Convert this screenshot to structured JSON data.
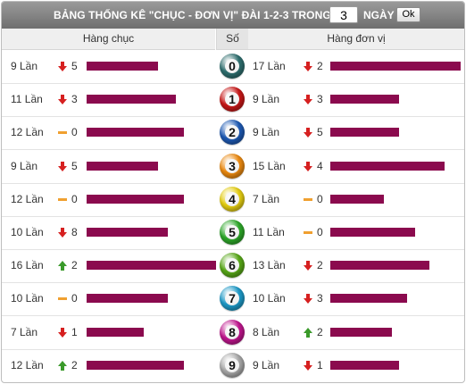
{
  "header": {
    "title": "BẢNG THỐNG KÊ \"CHỤC - ĐƠN VỊ\" ĐÀI 1-2-3 TRONG",
    "days_value": "3",
    "days_label": "NGÀY",
    "ok_label": "Ok"
  },
  "columns": {
    "tens": "Hàng chục",
    "number": "Số",
    "units": "Hàng đơn vị"
  },
  "colors": {
    "bar": "#8b0a4e",
    "trend_down": "#d62020",
    "trend_up": "#3a9a2a",
    "trend_flat": "#f0a030"
  },
  "rows": [
    {
      "digit": "0",
      "ball_color": "#2f6f6f",
      "tens": {
        "count": "9 Lần",
        "trend": "down",
        "delta": "5",
        "bar_fraction": 0.55
      },
      "units": {
        "count": "17 Lần",
        "trend": "down",
        "delta": "2",
        "bar_fraction": 1.0
      }
    },
    {
      "digit": "1",
      "ball_color": "#c81818",
      "tens": {
        "count": "11 Lần",
        "trend": "down",
        "delta": "3",
        "bar_fraction": 0.69
      },
      "units": {
        "count": "9 Lần",
        "trend": "down",
        "delta": "3",
        "bar_fraction": 0.53
      }
    },
    {
      "digit": "2",
      "ball_color": "#1e5ab4",
      "tens": {
        "count": "12 Lần",
        "trend": "flat",
        "delta": "0",
        "bar_fraction": 0.75
      },
      "units": {
        "count": "9 Lần",
        "trend": "down",
        "delta": "5",
        "bar_fraction": 0.53
      }
    },
    {
      "digit": "3",
      "ball_color": "#ec8a10",
      "tens": {
        "count": "9 Lần",
        "trend": "down",
        "delta": "5",
        "bar_fraction": 0.55
      },
      "units": {
        "count": "15 Lần",
        "trend": "down",
        "delta": "4",
        "bar_fraction": 0.88
      }
    },
    {
      "digit": "4",
      "ball_color": "#e6cf12",
      "tens": {
        "count": "12 Lần",
        "trend": "flat",
        "delta": "0",
        "bar_fraction": 0.75
      },
      "units": {
        "count": "7 Lần",
        "trend": "flat",
        "delta": "0",
        "bar_fraction": 0.41
      }
    },
    {
      "digit": "5",
      "ball_color": "#2ea82a",
      "tens": {
        "count": "10 Lần",
        "trend": "down",
        "delta": "8",
        "bar_fraction": 0.63
      },
      "units": {
        "count": "11 Lần",
        "trend": "flat",
        "delta": "0",
        "bar_fraction": 0.65
      }
    },
    {
      "digit": "6",
      "ball_color": "#58a818",
      "tens": {
        "count": "16 Lần",
        "trend": "up",
        "delta": "2",
        "bar_fraction": 1.0
      },
      "units": {
        "count": "13 Lần",
        "trend": "down",
        "delta": "2",
        "bar_fraction": 0.76
      }
    },
    {
      "digit": "7",
      "ball_color": "#1e9ac8",
      "tens": {
        "count": "10 Lần",
        "trend": "flat",
        "delta": "0",
        "bar_fraction": 0.63
      },
      "units": {
        "count": "10 Lần",
        "trend": "down",
        "delta": "3",
        "bar_fraction": 0.59
      }
    },
    {
      "digit": "8",
      "ball_color": "#c0168e",
      "tens": {
        "count": "7 Lần",
        "trend": "down",
        "delta": "1",
        "bar_fraction": 0.44
      },
      "units": {
        "count": "8 Lần",
        "trend": "up",
        "delta": "2",
        "bar_fraction": 0.47
      }
    },
    {
      "digit": "9",
      "ball_color": "#a8a8a8",
      "tens": {
        "count": "12 Lần",
        "trend": "up",
        "delta": "2",
        "bar_fraction": 0.75
      },
      "units": {
        "count": "9 Lần",
        "trend": "down",
        "delta": "1",
        "bar_fraction": 0.53
      }
    }
  ]
}
